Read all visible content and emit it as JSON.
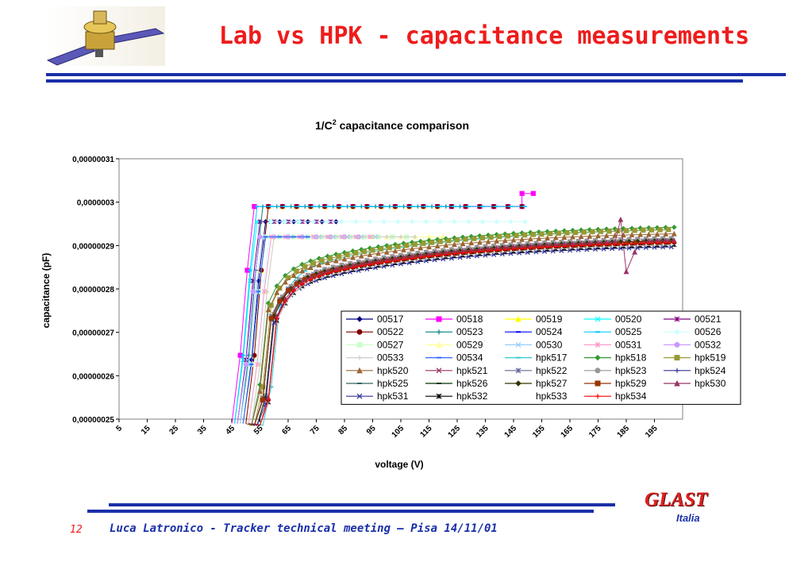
{
  "slide": {
    "title": "Lab vs HPK - capacitance measurements",
    "page_number": "12",
    "footer": "Luca Latronico - Tracker technical meeting – Pisa 14/11/01",
    "brand": "GLAST",
    "brand_sub": "Italia",
    "colors": {
      "title": "#ee1c1c",
      "bars": "#1a2fa8",
      "footer": "#1a2fa8"
    }
  },
  "chart_data": {
    "type": "line",
    "title_main": "1/C",
    "title_sup": "2",
    "title_rest": " capacitance comparison",
    "xlabel": "voltage (V)",
    "ylabel": "capacitance (pF)",
    "ylim": [
      2.5e-07,
      3.1e-07
    ],
    "xlim": [
      5,
      205
    ],
    "x_ticks": [
      "5",
      "15",
      "25",
      "35",
      "45",
      "55",
      "65",
      "75",
      "85",
      "95",
      "105",
      "115",
      "125",
      "135",
      "145",
      "155",
      "165",
      "175",
      "185",
      "195"
    ],
    "y_ticks": [
      "0,00000031",
      "0,0000003",
      "0,00000029",
      "0,00000028",
      "0,00000027",
      "0,00000026",
      "0,00000025"
    ],
    "legend_position": "lower-right",
    "grid": false,
    "series": [
      {
        "name": "00517",
        "color": "#000080",
        "marker": "diamond",
        "start": 52,
        "plateau": 2.955e-07,
        "end": 85
      },
      {
        "name": "00518",
        "color": "#ff00ff",
        "marker": "square",
        "start": 48,
        "plateau": 2.99e-07,
        "end": 150,
        "bump": [
          [
            148,
            3.02e-07
          ],
          [
            152,
            3.02e-07
          ]
        ]
      },
      {
        "name": "00519",
        "color": "#ffff00",
        "marker": "triangle",
        "start": 53,
        "plateau": 2.99e-07,
        "end": 120
      },
      {
        "name": "00520",
        "color": "#00ffff",
        "marker": "x",
        "start": 49,
        "plateau": 2.955e-07,
        "end": 70
      },
      {
        "name": "00521",
        "color": "#800080",
        "marker": "star",
        "start": 50,
        "plateau": 2.955e-07,
        "end": 80
      },
      {
        "name": "00522",
        "color": "#800000",
        "marker": "circle",
        "start": 53,
        "plateau": 2.99e-07,
        "end": 152
      },
      {
        "name": "00523",
        "color": "#008080",
        "marker": "plus",
        "start": 51,
        "plateau": 2.99e-07,
        "end": 130
      },
      {
        "name": "00524",
        "color": "#0000ff",
        "marker": "dash",
        "start": 50,
        "plateau": 2.92e-07,
        "end": 85
      },
      {
        "name": "00525",
        "color": "#00ccff",
        "marker": "dash",
        "start": 49,
        "plateau": 2.99e-07,
        "end": 152
      },
      {
        "name": "00526",
        "color": "#ccffff",
        "marker": "diamond",
        "start": 54,
        "plateau": 2.955e-07,
        "end": 150
      },
      {
        "name": "00527",
        "color": "#ccffcc",
        "marker": "square",
        "start": 52,
        "plateau": 2.92e-07,
        "end": 110
      },
      {
        "name": "00529",
        "color": "#ffff99",
        "marker": "triangle",
        "start": 55,
        "plateau": 2.92e-07,
        "end": 120
      },
      {
        "name": "00530",
        "color": "#99ccff",
        "marker": "x",
        "start": 51,
        "plateau": 2.92e-07,
        "end": 100
      },
      {
        "name": "00531",
        "color": "#ff99cc",
        "marker": "star",
        "start": 54,
        "plateau": 2.92e-07,
        "end": 95
      },
      {
        "name": "00532",
        "color": "#cc99ff",
        "marker": "circle",
        "start": 50,
        "plateau": 2.92e-07,
        "end": 90
      },
      {
        "name": "00533",
        "color": "#cccccc",
        "marker": "plus",
        "start": 55,
        "plateau": 2.92e-07,
        "end": 110
      },
      {
        "name": "00534",
        "color": "#3366ff",
        "marker": "dash",
        "start": 52,
        "plateau": 2.92e-07,
        "end": 75
      },
      {
        "name": "hpk517",
        "color": "#33cccc",
        "marker": "dash",
        "start": 56,
        "hpk": 2.945e-07
      },
      {
        "name": "hpk518",
        "color": "#339933",
        "marker": "diamond",
        "start": 52,
        "hpk": 2.95e-07
      },
      {
        "name": "hpk519",
        "color": "#999933",
        "marker": "square",
        "start": 53,
        "hpk": 2.945e-07
      },
      {
        "name": "hpk520",
        "color": "#996633",
        "marker": "triangle",
        "start": 52,
        "hpk": 2.935e-07
      },
      {
        "name": "hpk521",
        "color": "#993366",
        "marker": "x",
        "start": 54,
        "hpk": 2.925e-07
      },
      {
        "name": "hpk522",
        "color": "#666699",
        "marker": "star",
        "start": 53,
        "hpk": 2.92e-07
      },
      {
        "name": "hpk523",
        "color": "#969696",
        "marker": "circle",
        "start": 54,
        "hpk": 2.925e-07
      },
      {
        "name": "hpk524",
        "color": "#333399",
        "marker": "plus",
        "start": 53,
        "hpk": 2.915e-07
      },
      {
        "name": "hpk525",
        "color": "#336666",
        "marker": "dash",
        "start": 54,
        "hpk": 2.92e-07
      },
      {
        "name": "hpk526",
        "color": "#003300",
        "marker": "dash",
        "start": 53,
        "hpk": 2.915e-07
      },
      {
        "name": "hpk527",
        "color": "#333300",
        "marker": "diamond",
        "start": 54,
        "hpk": 2.92e-07
      },
      {
        "name": "hpk529",
        "color": "#993300",
        "marker": "square",
        "start": 53,
        "hpk": 2.915e-07
      },
      {
        "name": "hpk530",
        "color": "#993366",
        "marker": "triangle",
        "start": 55,
        "hpk": 2.92e-07,
        "dip": [
          [
            183,
            2.96e-07
          ],
          [
            185,
            2.84e-07
          ],
          [
            188,
            2.885e-07
          ],
          [
            190,
            2.905e-07
          ]
        ]
      },
      {
        "name": "hpk531",
        "color": "#333399",
        "marker": "x",
        "start": 54,
        "hpk": 2.905e-07
      },
      {
        "name": "hpk532",
        "color": "#000000",
        "marker": "star",
        "start": 55,
        "hpk": 2.91e-07
      },
      {
        "name": "hpk533",
        "color": "#ffffff",
        "marker": "none",
        "start": 55,
        "hpk": 2.91e-07
      },
      {
        "name": "hpk534",
        "color": "#ff0000",
        "marker": "plus",
        "start": 55,
        "hpk": 2.915e-07
      }
    ]
  }
}
